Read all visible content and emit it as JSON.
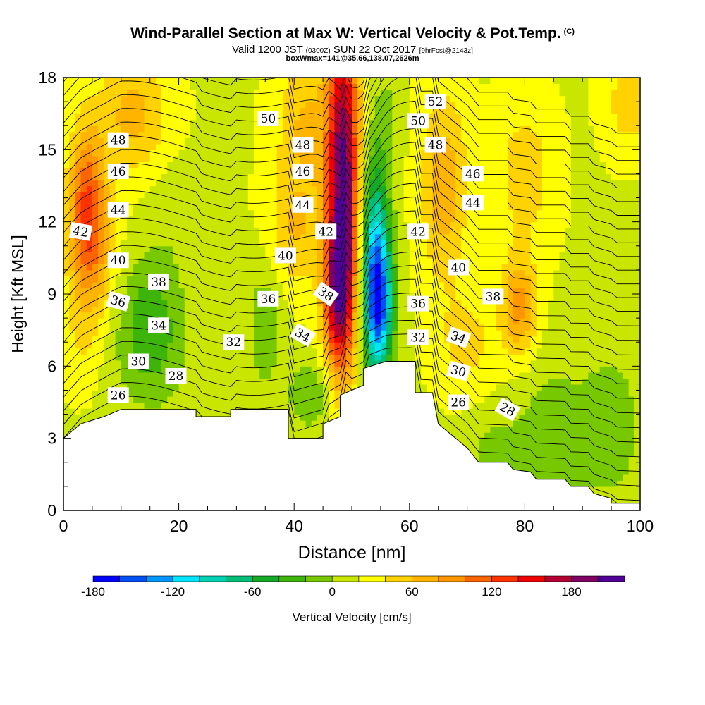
{
  "header": {
    "title": "Wind-Parallel Section at Max W: Vertical Velocity & Pot.Temp.",
    "title_mark": "(C)",
    "valid_prefix": "Valid 1200 JST",
    "utc_time": "(0300Z)",
    "valid_date": "SUN 22 Oct 2017",
    "forecast": "[9hrFcst@2143z]",
    "box_info": "boxWmax=141@35.66,138.07,2626m"
  },
  "chart_data": {
    "type": "heatmap",
    "xlabel": "Distance [nm]",
    "ylabel": "Height [Kft MSL]",
    "xlim": [
      0,
      100
    ],
    "ylim": [
      0,
      18
    ],
    "x_ticks": [
      0,
      20,
      40,
      60,
      80,
      100
    ],
    "y_ticks": [
      0,
      3,
      6,
      9,
      12,
      15,
      18
    ],
    "grid": false,
    "colorbar": {
      "label": "Vertical Velocity [cm/s]",
      "placement": "bottom",
      "tick_labels": [
        "-180",
        "-120",
        "-60",
        "0",
        "60",
        "120",
        "180"
      ],
      "tick_values": [
        -180,
        -120,
        -60,
        0,
        60,
        120,
        180
      ],
      "range": [
        -180,
        210
      ],
      "step": 20,
      "colors": [
        "#0000ff",
        "#0050f5",
        "#0096ff",
        "#00e6ff",
        "#00d2b4",
        "#00be78",
        "#14aa28",
        "#3cb40a",
        "#78c800",
        "#c8e600",
        "#ffff00",
        "#ffd200",
        "#ffb400",
        "#ff9600",
        "#ff6400",
        "#ff3200",
        "#f00000",
        "#b40032",
        "#800064",
        "#500096"
      ]
    },
    "terrain_kft": [
      [
        0,
        3.0
      ],
      [
        3,
        3.6
      ],
      [
        7,
        3.9
      ],
      [
        10,
        4.2
      ],
      [
        23,
        4.2
      ],
      [
        23,
        3.9
      ],
      [
        29,
        3.9
      ],
      [
        29,
        4.2
      ],
      [
        39,
        4.2
      ],
      [
        39,
        3.0
      ],
      [
        45,
        3.0
      ],
      [
        45,
        3.6
      ],
      [
        48,
        3.9
      ],
      [
        48,
        4.8
      ],
      [
        52,
        5.2
      ],
      [
        52,
        5.9
      ],
      [
        56,
        6.2
      ],
      [
        61,
        6.2
      ],
      [
        61,
        4.9
      ],
      [
        64,
        4.9
      ],
      [
        65,
        3.6
      ],
      [
        67,
        3.2
      ],
      [
        70,
        2.6
      ],
      [
        72,
        2.0
      ],
      [
        77,
        2.0
      ],
      [
        78,
        1.7
      ],
      [
        81,
        1.6
      ],
      [
        82,
        1.3
      ],
      [
        87,
        1.3
      ],
      [
        88,
        1.0
      ],
      [
        91,
        1.0
      ],
      [
        92,
        0.7
      ],
      [
        95,
        0.5
      ],
      [
        95,
        0.3
      ],
      [
        100,
        0.3
      ]
    ],
    "vertical_velocity_features": [
      {
        "x": 48.5,
        "y": 14.0,
        "w": 180,
        "sx": 2.8,
        "sy": 7
      },
      {
        "x": 47.5,
        "y": 9.0,
        "w": 110,
        "sx": 2.5,
        "sy": 3
      },
      {
        "x": 54.5,
        "y": 8.5,
        "w": -170,
        "sx": 2.5,
        "sy": 3.0
      },
      {
        "x": 54.0,
        "y": 12.0,
        "w": -80,
        "sx": 2.5,
        "sy": 3.5
      },
      {
        "x": 56.0,
        "y": 16.5,
        "w": -20,
        "sx": 2.5,
        "sy": 2
      },
      {
        "x": 15,
        "y": 7.5,
        "w": -55,
        "sx": 6,
        "sy": 3
      },
      {
        "x": 35,
        "y": 8.0,
        "w": -30,
        "sx": 3.5,
        "sy": 3
      },
      {
        "x": 43,
        "y": 4.8,
        "w": -35,
        "sx": 4,
        "sy": 1.5
      },
      {
        "x": 28,
        "y": 4.5,
        "w": -15,
        "sx": 7,
        "sy": 1.2
      },
      {
        "x": 85,
        "y": 3.0,
        "w": -35,
        "sx": 6,
        "sy": 3
      },
      {
        "x": 95,
        "y": 3.5,
        "w": -35,
        "sx": 5,
        "sy": 3
      },
      {
        "x": 75,
        "y": 2.5,
        "w": -25,
        "sx": 5,
        "sy": 1.5
      },
      {
        "x": 20,
        "y": 12.5,
        "w": -15,
        "sx": 5,
        "sy": 2
      },
      {
        "x": 4,
        "y": 13.0,
        "w": 85,
        "sx": 3,
        "sy": 3
      },
      {
        "x": 5,
        "y": 10.5,
        "w": 55,
        "sx": 4,
        "sy": 3
      },
      {
        "x": 12,
        "y": 16.5,
        "w": 50,
        "sx": 6,
        "sy": 2.5
      },
      {
        "x": 42,
        "y": 16.0,
        "w": 45,
        "sx": 5,
        "sy": 3
      },
      {
        "x": 40,
        "y": 11.5,
        "w": 40,
        "sx": 5,
        "sy": 2.5
      },
      {
        "x": 66,
        "y": 13.5,
        "w": 55,
        "sx": 4,
        "sy": 4
      },
      {
        "x": 79,
        "y": 8.5,
        "w": 70,
        "sx": 3,
        "sy": 2
      },
      {
        "x": 80,
        "y": 14.0,
        "w": 35,
        "sx": 5,
        "sy": 3
      },
      {
        "x": 98,
        "y": 17.0,
        "w": 35,
        "sx": 4,
        "sy": 2
      },
      {
        "x": 70,
        "y": 7.0,
        "w": 30,
        "sx": 5,
        "sy": 2
      },
      {
        "x": 3,
        "y": 7.0,
        "w": 15,
        "sx": 3,
        "sy": 2
      }
    ],
    "potential_temperature": {
      "unit": "C",
      "levels": [
        26,
        27,
        28,
        29,
        30,
        31,
        32,
        33,
        34,
        35,
        36,
        37,
        38,
        39,
        40,
        41,
        42,
        43,
        44,
        45,
        46,
        47,
        48,
        49,
        50,
        51,
        52,
        53
      ],
      "labels": [
        {
          "text": "52",
          "x": 64.5,
          "y": 17.0,
          "angle": 0
        },
        {
          "text": "50",
          "x": 35.5,
          "y": 16.3,
          "angle": 0
        },
        {
          "text": "50",
          "x": 61.5,
          "y": 16.2,
          "angle": 0
        },
        {
          "text": "48",
          "x": 9.5,
          "y": 15.4,
          "angle": 0
        },
        {
          "text": "48",
          "x": 41.5,
          "y": 15.2,
          "angle": 0
        },
        {
          "text": "48",
          "x": 64.5,
          "y": 15.2,
          "angle": 0
        },
        {
          "text": "46",
          "x": 9.5,
          "y": 14.1,
          "angle": 0
        },
        {
          "text": "46",
          "x": 41.5,
          "y": 14.1,
          "angle": 0
        },
        {
          "text": "46",
          "x": 71.0,
          "y": 14.0,
          "angle": 0
        },
        {
          "text": "44",
          "x": 9.5,
          "y": 12.5,
          "angle": 0
        },
        {
          "text": "44",
          "x": 41.5,
          "y": 12.7,
          "angle": 0
        },
        {
          "text": "44",
          "x": 71.0,
          "y": 12.8,
          "angle": 0
        },
        {
          "text": "42",
          "x": 3.0,
          "y": 11.6,
          "angle": 10
        },
        {
          "text": "42",
          "x": 45.5,
          "y": 11.6,
          "angle": 0
        },
        {
          "text": "42",
          "x": 61.5,
          "y": 11.6,
          "angle": 0
        },
        {
          "text": "40",
          "x": 9.5,
          "y": 10.4,
          "angle": 0
        },
        {
          "text": "40",
          "x": 38.5,
          "y": 10.6,
          "angle": 0
        },
        {
          "text": "40",
          "x": 68.5,
          "y": 10.1,
          "angle": 0
        },
        {
          "text": "38",
          "x": 16.5,
          "y": 9.5,
          "angle": 0
        },
        {
          "text": "38",
          "x": 45.5,
          "y": 9.0,
          "angle": 35
        },
        {
          "text": "38",
          "x": 74.5,
          "y": 8.9,
          "angle": 0
        },
        {
          "text": "36",
          "x": 9.5,
          "y": 8.7,
          "angle": 15
        },
        {
          "text": "36",
          "x": 35.5,
          "y": 8.8,
          "angle": 0
        },
        {
          "text": "36",
          "x": 61.5,
          "y": 8.6,
          "angle": 0
        },
        {
          "text": "34",
          "x": 16.5,
          "y": 7.7,
          "angle": 0
        },
        {
          "text": "34",
          "x": 41.5,
          "y": 7.3,
          "angle": 30
        },
        {
          "text": "34",
          "x": 68.5,
          "y": 7.2,
          "angle": 20
        },
        {
          "text": "32",
          "x": 29.5,
          "y": 7.0,
          "angle": 0
        },
        {
          "text": "32",
          "x": 61.5,
          "y": 7.2,
          "angle": 0
        },
        {
          "text": "30",
          "x": 13.0,
          "y": 6.2,
          "angle": 0
        },
        {
          "text": "30",
          "x": 68.5,
          "y": 5.8,
          "angle": 15
        },
        {
          "text": "28",
          "x": 19.5,
          "y": 5.6,
          "angle": 0
        },
        {
          "text": "28",
          "x": 77.0,
          "y": 4.2,
          "angle": 30
        },
        {
          "text": "26",
          "x": 9.5,
          "y": 4.8,
          "angle": 0
        },
        {
          "text": "26",
          "x": 68.5,
          "y": 4.5,
          "angle": 0
        }
      ]
    }
  }
}
